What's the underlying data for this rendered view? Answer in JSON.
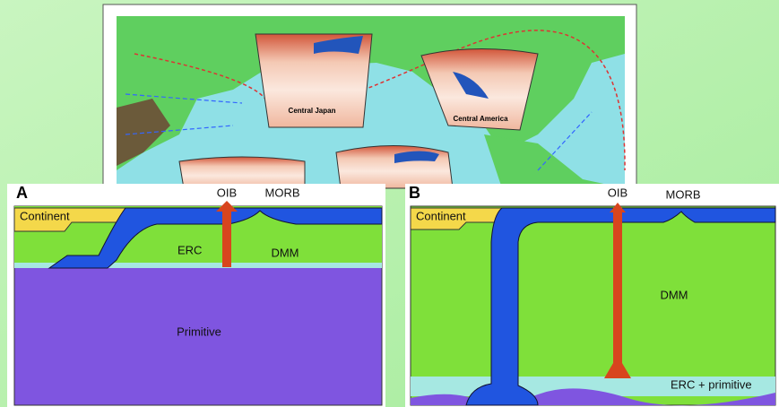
{
  "map": {
    "sections": [
      "Central Japan",
      "Central America"
    ]
  },
  "panel_a": {
    "letter": "A",
    "continent": "Continent",
    "oib": "OIB",
    "morb": "MORB",
    "erc": "ERC",
    "dmm": "DMM",
    "primitive": "Primitive"
  },
  "panel_b": {
    "letter": "B",
    "continent": "Continent",
    "oib": "OIB",
    "morb": "MORB",
    "dmm": "DMM",
    "erc": "ERC + primitive"
  }
}
